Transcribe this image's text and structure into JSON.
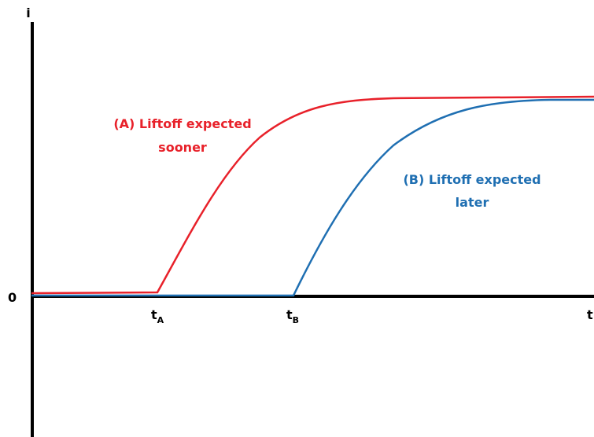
{
  "axes": {
    "y_label": "i",
    "origin_label": "0",
    "x_label": "t"
  },
  "ticks": [
    {
      "main": "t",
      "sub": "A"
    },
    {
      "main": "t",
      "sub": "B"
    }
  ],
  "annotations": [
    {
      "lines": [
        "(A) Liftoff expected",
        "sooner"
      ]
    },
    {
      "lines": [
        "(B) Liftoff expected",
        "later"
      ]
    }
  ]
}
